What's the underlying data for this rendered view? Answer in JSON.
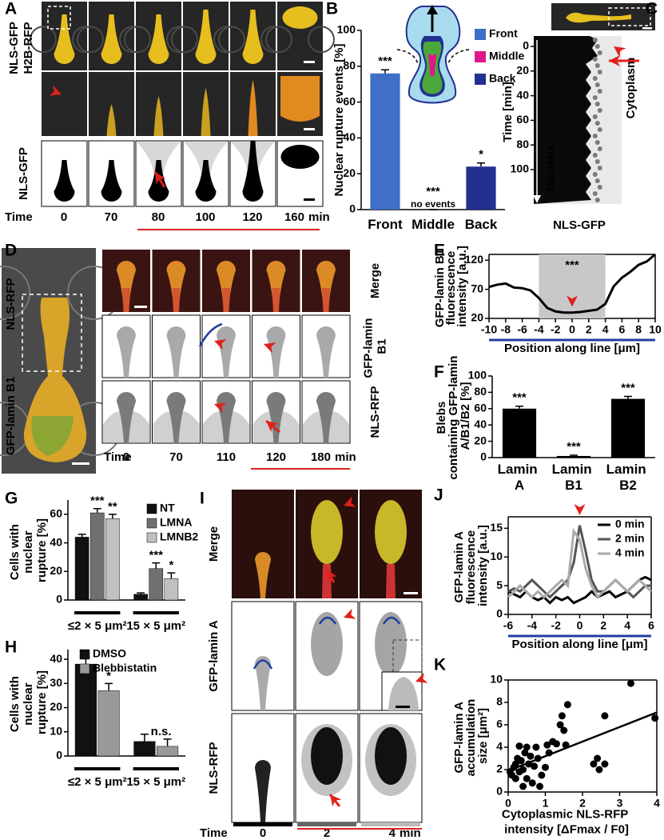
{
  "figure": {
    "A": {
      "label": "A",
      "label_green": "NLS-GFP",
      "label_red": "H2B-RFP",
      "label_bottom": "NLS-GFP",
      "time_label": "Time",
      "times": [
        "0",
        "70",
        "80",
        "100",
        "120",
        "160"
      ],
      "unit": "min"
    },
    "C": {
      "label": "C",
      "y_label": "Time [min]",
      "yticks": [
        0,
        20,
        40,
        60,
        80,
        100
      ],
      "nucleus_label": "Nucleus",
      "cytoplasm_label": "Cytoplasm",
      "bottom_label": "NLS-GFP"
    },
    "D": {
      "label": "D",
      "label_red": "NLS-RFP",
      "label_green": "GFP-lamin B1",
      "row_labels": [
        "Merge",
        "GFP-lamin B1",
        "NLS-RFP"
      ],
      "time_label": "Time",
      "times": [
        "0",
        "70",
        "110",
        "120",
        "180"
      ],
      "unit": "min"
    },
    "I": {
      "label": "I",
      "row_labels": [
        "Merge",
        "GFP-lamin A",
        "NLS-RFP"
      ],
      "time_label": "Time",
      "times": [
        "0",
        "2",
        "4"
      ],
      "unit": "min"
    }
  },
  "chart_data": [
    {
      "panel_label": "B",
      "type": "bar",
      "y_label": "Nuclear rupture events [%]",
      "categories": [
        "Front",
        "Middle",
        "Back"
      ],
      "values": [
        76,
        0,
        24
      ],
      "errors": [
        2,
        0,
        2
      ],
      "colors": [
        "#3f6fc6",
        "#e0168c",
        "#22308f"
      ],
      "annotations": [
        "***",
        "***",
        "*"
      ],
      "note": "no events",
      "ylim": [
        0,
        100
      ],
      "yticks": [
        0,
        20,
        40,
        60,
        80,
        100
      ]
    },
    {
      "panel_label": "E",
      "type": "line",
      "y_label": "GFP-lamin B1 fluorescence intensity [a.u.]",
      "x_label": "Position along line [μm]",
      "x": [
        -10,
        -9,
        -8,
        -7,
        -6,
        -5,
        -4,
        -3,
        -2,
        -1,
        0,
        1,
        2,
        3,
        4,
        5,
        6,
        7,
        8,
        9,
        10
      ],
      "values": [
        74,
        78,
        80,
        73,
        72,
        68,
        55,
        38,
        32,
        30,
        30,
        31,
        33,
        35,
        45,
        75,
        90,
        100,
        112,
        118,
        130
      ],
      "color": "#000000",
      "highlight": [
        -4,
        4
      ],
      "annotation": "***",
      "xlim": [
        -10,
        10
      ],
      "xticks": [
        -10,
        -8,
        -6,
        -4,
        -2,
        0,
        2,
        4,
        6,
        8,
        10
      ],
      "ylim": [
        20,
        130
      ],
      "yticks": [
        20,
        70,
        120
      ]
    },
    {
      "panel_label": "F",
      "type": "bar",
      "y_label": "Blebs containing GFP-lamin A/B1/B2 [%]",
      "categories": [
        "Lamin A",
        "Lamin B1",
        "Lamin B2"
      ],
      "values": [
        60,
        2,
        72
      ],
      "errors": [
        3,
        1,
        3
      ],
      "color": "#000000",
      "annotations": [
        "***",
        "***",
        "***"
      ],
      "ylim": [
        0,
        100
      ],
      "yticks": [
        0,
        20,
        40,
        60,
        80,
        100
      ]
    },
    {
      "panel_label": "G",
      "type": "bar",
      "y_label": "Cells with nuclear rupture [%]",
      "categories": [
        "≤2 × 5 μm²",
        "15 × 5 μm²"
      ],
      "series": [
        {
          "name": "NT",
          "color": "#111111",
          "values": [
            44,
            4
          ],
          "errors": [
            2,
            1
          ]
        },
        {
          "name": "LMNA",
          "color": "#707070",
          "values": [
            61,
            22
          ],
          "errors": [
            3,
            4
          ],
          "annotations": [
            "***",
            "***"
          ]
        },
        {
          "name": "LMNB2",
          "color": "#c0c0c0",
          "values": [
            57,
            15
          ],
          "errors": [
            3,
            4
          ],
          "annotations": [
            "**",
            "*"
          ]
        }
      ],
      "ylim": [
        0,
        70
      ],
      "yticks": [
        0,
        20,
        40,
        60
      ]
    },
    {
      "panel_label": "H",
      "type": "bar",
      "y_label": "Cells with nuclear rupture [%]",
      "categories": [
        "≤2 × 5 μm²",
        "15 × 5 μm²"
      ],
      "series": [
        {
          "name": "DMSO",
          "color": "#111111",
          "values": [
            38,
            6
          ],
          "errors": [
            3,
            3
          ]
        },
        {
          "name": "Blebbistatin",
          "color": "#999999",
          "values": [
            27,
            4
          ],
          "errors": [
            3,
            3
          ],
          "annotations": [
            "*",
            "n.s."
          ]
        }
      ],
      "ylim": [
        0,
        44
      ],
      "yticks": [
        0,
        10,
        20,
        30,
        40
      ]
    },
    {
      "panel_label": "J",
      "type": "line",
      "y_label": "GFP-lamin A fluorescence intensity [a.u.]",
      "x_label": "Position along line [μm]",
      "x": [
        -6,
        -5.5,
        -5,
        -4.5,
        -4,
        -3.5,
        -3,
        -2.5,
        -2,
        -1.5,
        -1,
        -0.5,
        0,
        0.5,
        1,
        1.5,
        2,
        2.5,
        3,
        3.5,
        4,
        4.5,
        5,
        5.5,
        6
      ],
      "series": [
        {
          "name": "0 min",
          "color": "#000000",
          "values": [
            4,
            3.5,
            3,
            4,
            3,
            2.5,
            3,
            2,
            3,
            2.5,
            3,
            2,
            2.5,
            3,
            4,
            3,
            3.5,
            4,
            3,
            3.5,
            4,
            5,
            6,
            6.5,
            6
          ]
        },
        {
          "name": "2 min",
          "color": "#555555",
          "values": [
            4,
            4.5,
            4,
            5,
            6,
            5,
            4,
            3,
            4,
            5,
            6,
            9,
            15.5,
            11,
            6,
            4,
            4,
            5,
            6,
            5,
            4,
            3,
            4,
            5,
            5
          ]
        },
        {
          "name": "4 min",
          "color": "#aaaaaa",
          "values": [
            3,
            4,
            5,
            4,
            3,
            4,
            3,
            4,
            5,
            6,
            5,
            14.5,
            13,
            8,
            5,
            3,
            4,
            5,
            6,
            5,
            4,
            5,
            6,
            5,
            4
          ]
        }
      ],
      "xlim": [
        -6,
        6
      ],
      "xticks": [
        -6,
        -4,
        -2,
        0,
        2,
        4,
        6
      ],
      "ylim": [
        0,
        17
      ],
      "yticks": [
        0,
        5,
        10,
        15
      ]
    },
    {
      "panel_label": "K",
      "type": "scatter",
      "y_label": "GFP-lamin A accumulation size [μm²]",
      "x_label": "Cytoplasmic NLS-RFP intensity [ΔFmax / F0]",
      "x": [
        0.05,
        0.1,
        0.15,
        0.2,
        0.2,
        0.25,
        0.3,
        0.3,
        0.35,
        0.4,
        0.4,
        0.45,
        0.5,
        0.5,
        0.55,
        0.6,
        0.65,
        0.7,
        0.75,
        0.8,
        0.85,
        0.9,
        1.0,
        1.05,
        1.1,
        1.2,
        1.3,
        1.4,
        1.45,
        1.5,
        1.55,
        1.6,
        2.3,
        2.4,
        2.45,
        2.6,
        2.6,
        3.3,
        3.95
      ],
      "values": [
        1.8,
        1.5,
        2.2,
        2.5,
        1.2,
        3,
        1.8,
        4.1,
        2.8,
        0.5,
        2,
        3.5,
        4,
        1.2,
        2.5,
        3.2,
        0.8,
        2.3,
        4,
        3,
        0.5,
        1.5,
        2.2,
        4.2,
        3.5,
        4.5,
        4.3,
        6,
        6.8,
        5.5,
        4.2,
        7.8,
        2.5,
        3,
        2,
        2.5,
        6.8,
        9.7,
        6.6
      ],
      "color": "#000000",
      "fit_line": {
        "x": [
          0,
          4
        ],
        "y": [
          1.9,
          7.1
        ]
      },
      "xlim": [
        0,
        4
      ],
      "xticks": [
        0,
        1,
        2,
        3,
        4
      ],
      "ylim": [
        0,
        10
      ],
      "yticks": [
        0,
        2,
        4,
        6,
        8,
        10
      ]
    }
  ]
}
